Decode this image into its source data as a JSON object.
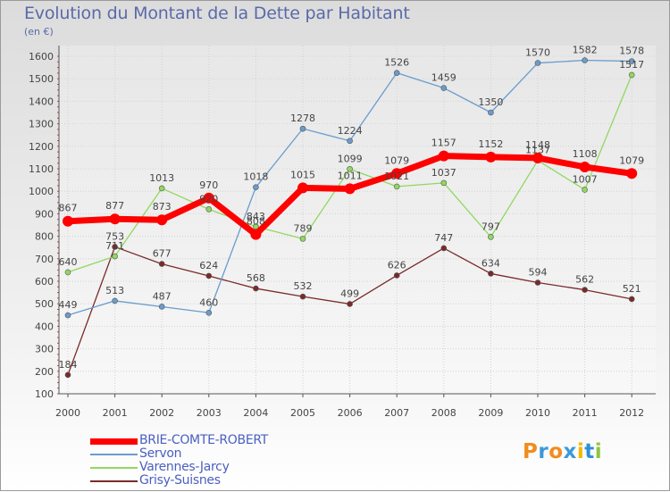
{
  "title": "Evolution du Montant de la Dette par Habitant",
  "unit": "(en €)",
  "logo": {
    "text": "Proxiti",
    "colors": [
      "#f28c1e",
      "#3a9ad9",
      "#f28c1e",
      "#3a9ad9",
      "#f5b800",
      "#2f8fd8",
      "#8dc63f"
    ]
  },
  "chart_data": {
    "type": "line",
    "x": [
      "2000",
      "2001",
      "2002",
      "2003",
      "2004",
      "2005",
      "2006",
      "2007",
      "2008",
      "2009",
      "2010",
      "2011",
      "2012"
    ],
    "ylim": [
      100,
      1600
    ],
    "yticks": [
      100,
      200,
      300,
      400,
      500,
      600,
      700,
      800,
      900,
      1000,
      1100,
      1200,
      1300,
      1400,
      1500,
      1600
    ],
    "grid": true,
    "legend_position": "bottom-left",
    "series": [
      {
        "name": "BRIE-COMTE-ROBERT",
        "color": "#ff0000",
        "width": 7,
        "marker": 6,
        "values": [
          867,
          877,
          873,
          970,
          808,
          1015,
          1011,
          1079,
          1157,
          1152,
          1148,
          1108,
          1079
        ],
        "labels": [
          "867",
          "877",
          "873",
          "970",
          "808",
          "1015",
          "1011",
          "1079",
          "1157",
          "1152",
          "1148",
          "1108",
          "1079"
        ]
      },
      {
        "name": "Servon",
        "color": "#6a9ccc",
        "width": 1.3,
        "marker": 3,
        "values": [
          449,
          513,
          487,
          460,
          1018,
          1278,
          1224,
          1526,
          1459,
          1350,
          1570,
          1582,
          1578
        ],
        "labels": [
          "449",
          "513",
          "487",
          "460",
          "1018",
          "1278",
          "1224",
          "1526",
          "1459",
          "1350",
          "1570",
          "1582",
          "1578"
        ]
      },
      {
        "name": "Varennes-Jarcy",
        "color": "#90d860",
        "width": 1.3,
        "marker": 3,
        "values": [
          640,
          711,
          1013,
          920,
          843,
          789,
          1099,
          1021,
          1037,
          797,
          1137,
          1007,
          1517
        ],
        "labels": [
          "640",
          "711",
          "1013",
          "920",
          "843",
          "789",
          "1099",
          "1021",
          "1037",
          "797",
          "1137",
          "1007",
          "1517"
        ]
      },
      {
        "name": "Grisy-Suisnes",
        "color": "#7a2a2a",
        "width": 1.3,
        "marker": 3,
        "values": [
          184,
          753,
          677,
          624,
          568,
          532,
          499,
          626,
          747,
          634,
          594,
          562,
          521
        ],
        "labels": [
          "184",
          "753",
          "677",
          "624",
          "568",
          "532",
          "499",
          "626",
          "747",
          "634",
          "594",
          "562",
          "521"
        ]
      }
    ]
  }
}
